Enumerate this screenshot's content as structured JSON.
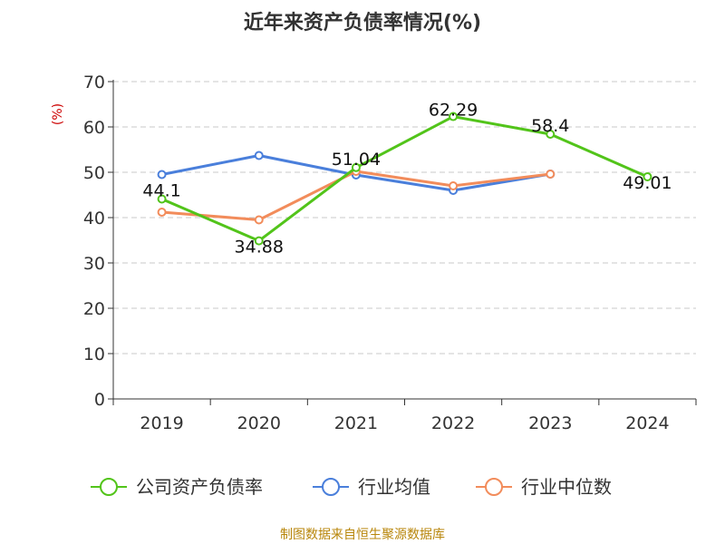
{
  "chart_data": {
    "type": "line",
    "title": "近年来资产负债率情况(%)",
    "ylabel": "(%)",
    "xlabel": "",
    "categories": [
      "2019",
      "2020",
      "2021",
      "2022",
      "2023",
      "2024"
    ],
    "ylim": [
      0,
      70
    ],
    "yticks": [
      0,
      10,
      20,
      30,
      40,
      50,
      60,
      70
    ],
    "grid": true,
    "legend_position": "bottom",
    "series": [
      {
        "name": "公司资产负债率",
        "color": "#52c41a",
        "values": [
          44.1,
          34.88,
          51.04,
          62.29,
          58.4,
          49.01
        ],
        "labels": [
          "44.1",
          "34.88",
          "51.04",
          "62.29",
          "58.4",
          "49.01"
        ]
      },
      {
        "name": "行业均值",
        "color": "#4a7fdb",
        "values": [
          49.5,
          53.7,
          49.4,
          46.0,
          49.6,
          null
        ]
      },
      {
        "name": "行业中位数",
        "color": "#f28c5b",
        "values": [
          41.2,
          39.5,
          50.2,
          47.0,
          49.6,
          null
        ]
      }
    ]
  },
  "source": "制图数据来自恒生聚源数据库"
}
